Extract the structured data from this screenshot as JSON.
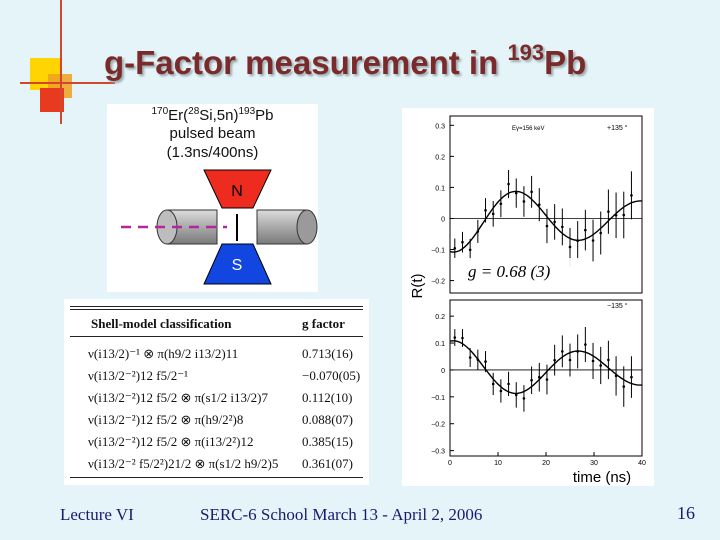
{
  "title": {
    "prefix": "g-Factor measurement in ",
    "mass": "193",
    "element": "Pb"
  },
  "setup": {
    "reaction": {
      "prefix": "",
      "m1": "170",
      "t1": "Er(",
      "m2": "28",
      "t2": "Si,5n)",
      "m3": "193",
      "t3": "Pb"
    },
    "beam_line1": "pulsed beam",
    "beam_line2": "(1.3ns/400ns)",
    "north": "N",
    "south": "S",
    "colors": {
      "north": "#ee2b1f",
      "south": "#1246e0",
      "beam": "#b0279e"
    }
  },
  "table": {
    "col1": "Shell-model classification",
    "col2": "g factor",
    "rows": [
      {
        "config": "ν(i13/2)⁻¹ ⊗ π(h9/2 i13/2)11",
        "g": "0.713(16)"
      },
      {
        "config": "ν(i13/2⁻²)12 f5/2⁻¹",
        "g": "−0.070(05)"
      },
      {
        "config": "ν(i13/2⁻²)12 f5/2 ⊗ π(s1/2 i13/2)7",
        "g": "0.112(10)"
      },
      {
        "config": "ν(i13/2⁻²)12 f5/2 ⊗ π(h9/2²)8",
        "g": "0.088(07)"
      },
      {
        "config": "ν(i13/2⁻²)12 f5/2 ⊗ π(i13/2²)12",
        "g": "0.385(15)"
      },
      {
        "config": "ν(i13/2⁻² f5/2²)21/2 ⊗ π(s1/2 h9/2)5",
        "g": "0.361(07)"
      }
    ]
  },
  "plot": {
    "ylabel": "R(t)",
    "xlabel": "time (ns)",
    "result": "g = 0.68 (3)",
    "top_energy": "Eγ=156 keV",
    "top_angle": "+135 °",
    "bottom_angle": "−135 °",
    "xticks": [
      "0",
      "10",
      "20",
      "30",
      "40"
    ],
    "yticks_top": [
      "0.3",
      "0.2",
      "0.1",
      "0",
      "−0.1",
      "−0.2"
    ],
    "yticks_bottom": [
      "0.2",
      "0.1",
      "0",
      "−0.1",
      "−0.2",
      "−0.3"
    ],
    "xlim": [
      0,
      40
    ],
    "ylim": [
      -0.3,
      0.3
    ]
  },
  "footer": {
    "left": "Lecture VI",
    "center": "SERC-6 School March 13 - April 2, 2006",
    "page": "16"
  }
}
